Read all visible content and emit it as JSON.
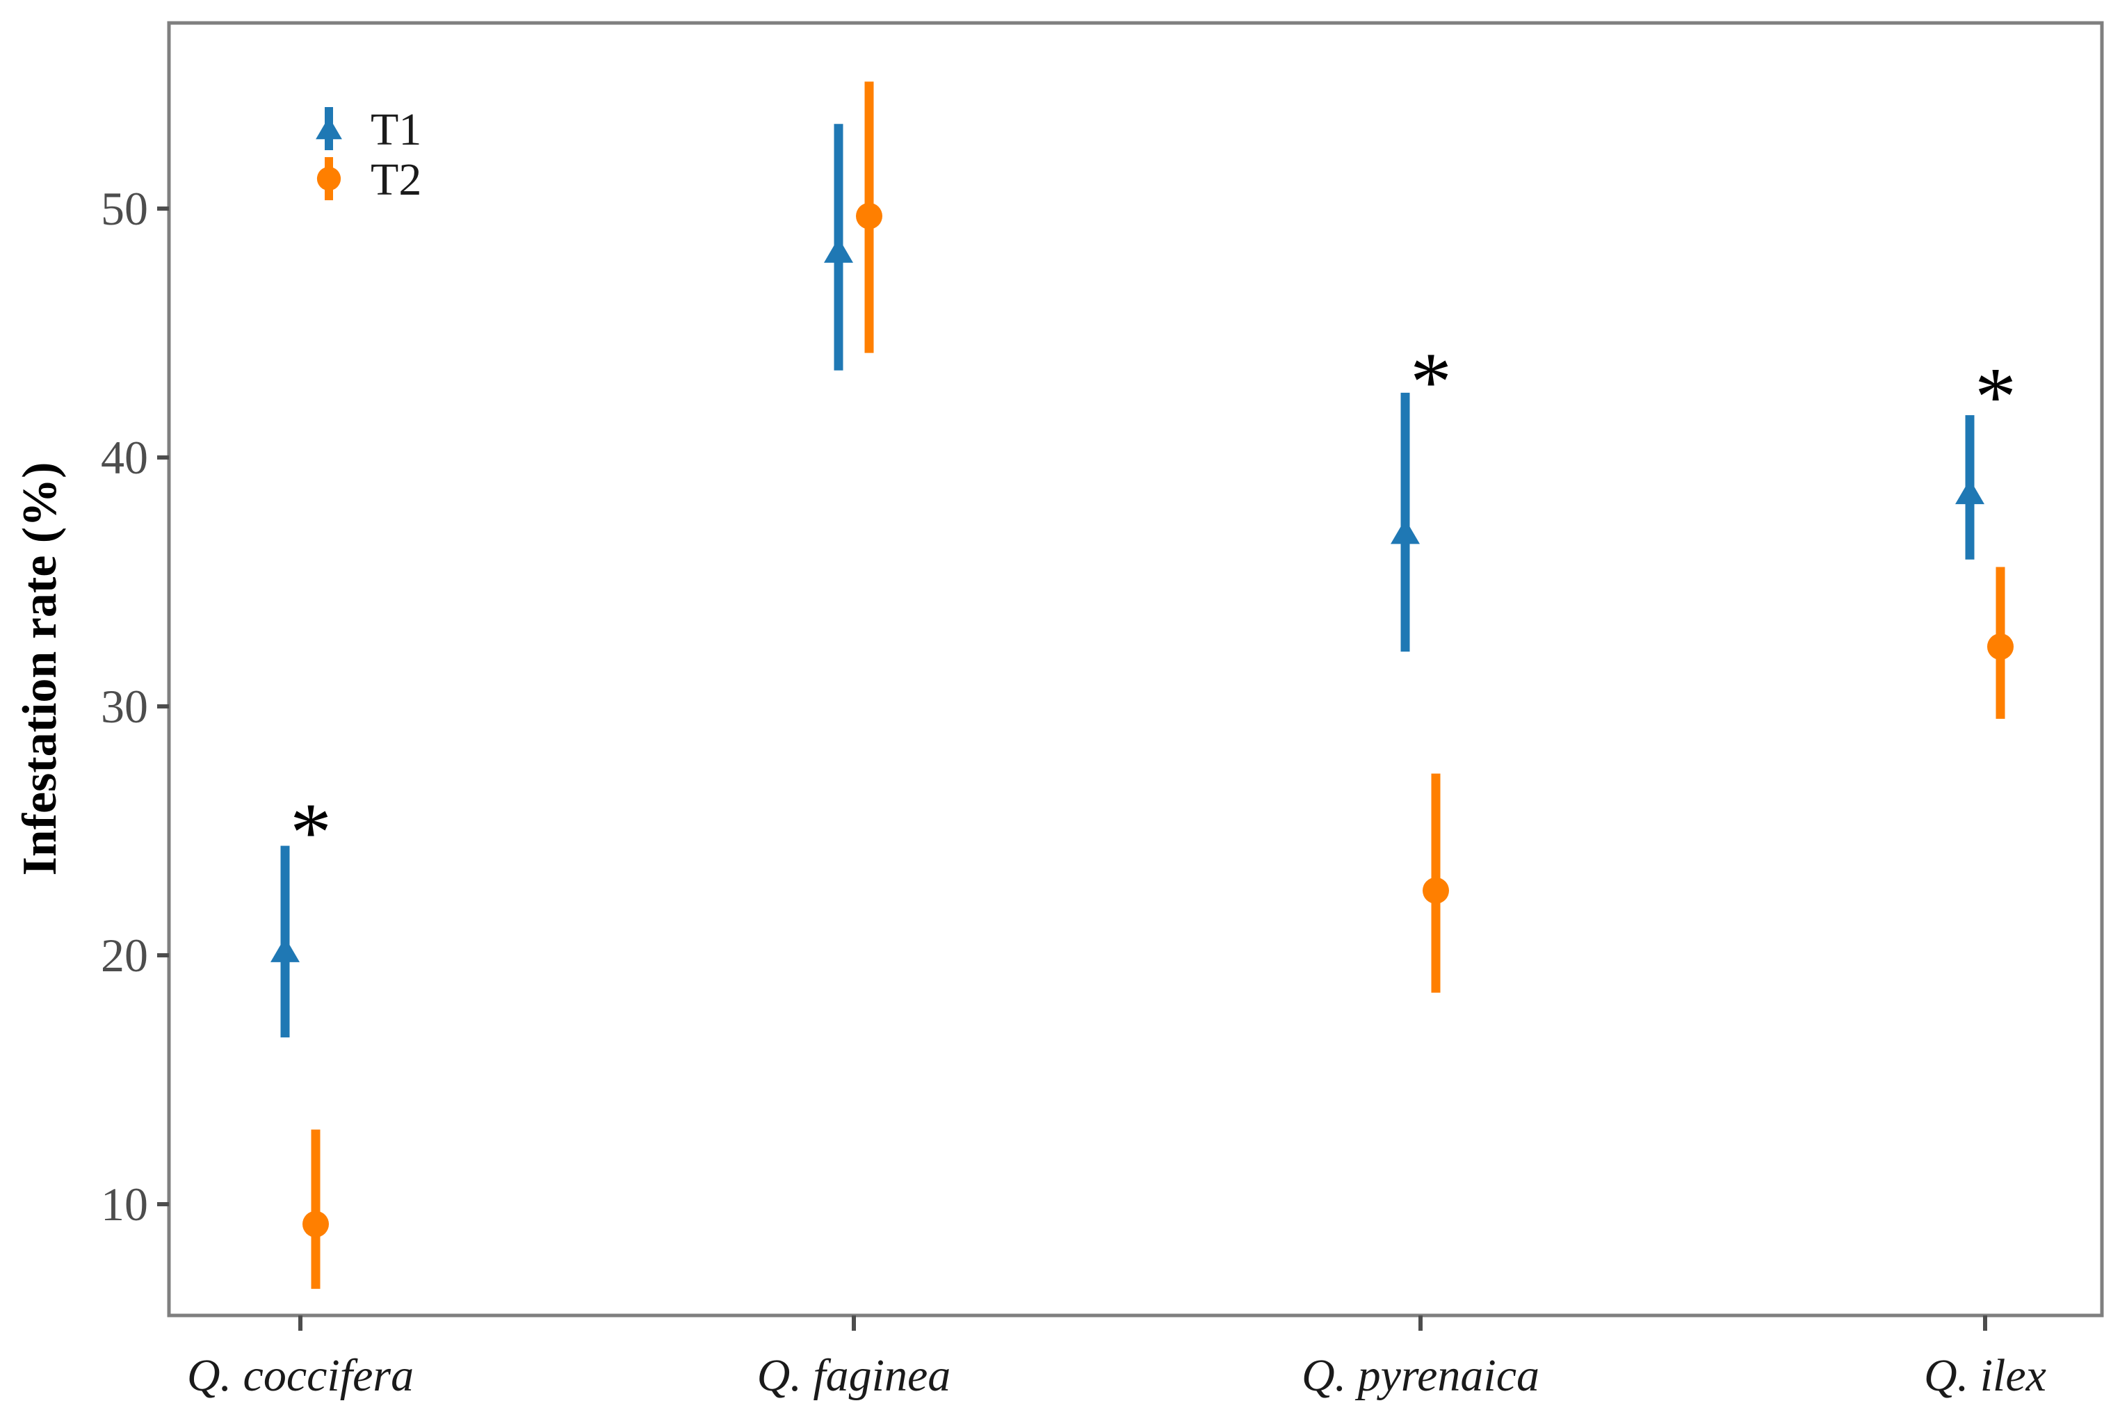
{
  "chart_data": {
    "type": "scatter",
    "title": "",
    "ylabel": "Infestation rate (%)",
    "xlabel": "",
    "ylim": [
      5.5,
      57.5
    ],
    "yticks": [
      10,
      20,
      30,
      40,
      50
    ],
    "categories": [
      "Q. coccifera",
      "Q. faginea",
      "Q. pyrenaica",
      "Q. ilex"
    ],
    "series": [
      {
        "name": "T1",
        "marker": "triangle",
        "color": "#1F78B4",
        "values": [
          20.2,
          48.3,
          37.0,
          38.6
        ],
        "ci_low": [
          16.7,
          43.5,
          32.2,
          35.9
        ],
        "ci_high": [
          24.4,
          53.4,
          42.6,
          41.7
        ]
      },
      {
        "name": "T2",
        "marker": "circle",
        "color": "#FF7F00",
        "values": [
          9.2,
          49.7,
          22.6,
          32.4
        ],
        "ci_low": [
          6.6,
          44.2,
          18.5,
          29.5
        ],
        "ci_high": [
          13.0,
          55.1,
          27.3,
          35.6
        ]
      }
    ],
    "significance_markers": [
      {
        "category_index": 0,
        "label": "*",
        "y": 25.9
      },
      {
        "category_index": 2,
        "label": "*",
        "y": 44.0
      },
      {
        "category_index": 3,
        "label": "*",
        "y": 43.4
      }
    ],
    "legend_position": "inside-top-left",
    "grid": false,
    "background": "#FFFFFF",
    "frame_color": "#7F7F7F",
    "tick_color": "#4D4D4D",
    "text_color": "#1A1A1A"
  }
}
